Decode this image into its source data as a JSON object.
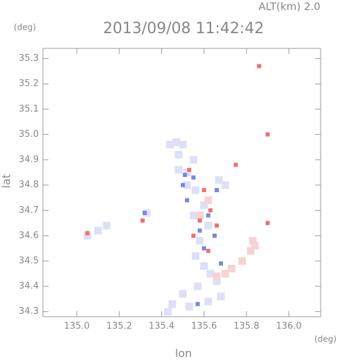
{
  "chart_data": {
    "type": "scatter",
    "title": "2013/09/08 11:42:42",
    "subtitle": "ALT(km)  2.0",
    "x_label": "lon",
    "y_label": "lat",
    "x_unit": "(deg)",
    "y_unit": "(deg)",
    "xlim": [
      134.84,
      136.15
    ],
    "ylim": [
      34.28,
      35.34
    ],
    "xticks": [
      {
        "value": 135,
        "label": "135.0"
      },
      135.2,
      135.4,
      135.6,
      135.8,
      {
        "value": 136,
        "label": "136.0"
      }
    ],
    "yticks": [
      34.3,
      34.4,
      34.5,
      34.6,
      34.7,
      34.8,
      34.9,
      {
        "value": 35,
        "label": "35.0"
      },
      35.1,
      35.2,
      35.3
    ],
    "series": [
      {
        "color": "#dde0f6",
        "x": [
          135.44,
          135.47,
          135.5,
          135.48,
          135.55,
          135.52,
          135.56,
          135.6,
          135.62,
          135.58,
          135.56,
          135.6,
          135.63,
          135.66,
          135.57,
          135.5,
          135.45,
          135.43,
          135.53,
          135.62,
          135.68,
          135.48,
          135.52,
          135.05,
          135.1,
          135.14,
          135.67,
          135.33,
          135.7,
          135.55
        ],
        "values": [
          34.96,
          34.97,
          34.96,
          34.92,
          34.9,
          34.85,
          34.78,
          34.72,
          34.64,
          34.58,
          34.52,
          34.48,
          34.45,
          34.42,
          34.4,
          34.37,
          34.33,
          34.3,
          34.32,
          34.34,
          34.36,
          34.86,
          34.8,
          34.6,
          34.62,
          34.64,
          34.82,
          34.69,
          34.8,
          34.68
        ]
      },
      {
        "color": "#f6d4d4",
        "x": [
          135.83,
          135.84,
          135.82,
          135.7,
          135.73,
          135.58,
          135.62,
          135.78,
          135.66
        ],
        "values": [
          34.58,
          34.56,
          34.54,
          34.45,
          34.47,
          34.68,
          34.74,
          34.5,
          34.44
        ]
      },
      {
        "color": "#7a85e0",
        "x": [
          135.5,
          135.55,
          135.62,
          135.58,
          135.65,
          135.6,
          135.52,
          135.68,
          135.57,
          135.51,
          135.32,
          135.66
        ],
        "values": [
          34.8,
          34.83,
          34.68,
          34.62,
          34.6,
          34.55,
          34.74,
          34.49,
          34.33,
          34.84,
          34.69,
          34.78
        ]
      },
      {
        "color": "#f07070",
        "x": [
          135.05,
          135.53,
          135.6,
          135.58,
          135.63,
          135.55,
          135.66,
          135.86,
          135.9,
          135.9,
          135.75,
          135.62,
          135.31
        ],
        "values": [
          34.61,
          34.86,
          34.78,
          34.66,
          34.7,
          34.6,
          34.64,
          35.27,
          35.0,
          34.65,
          34.88,
          34.54,
          34.66
        ]
      }
    ]
  }
}
